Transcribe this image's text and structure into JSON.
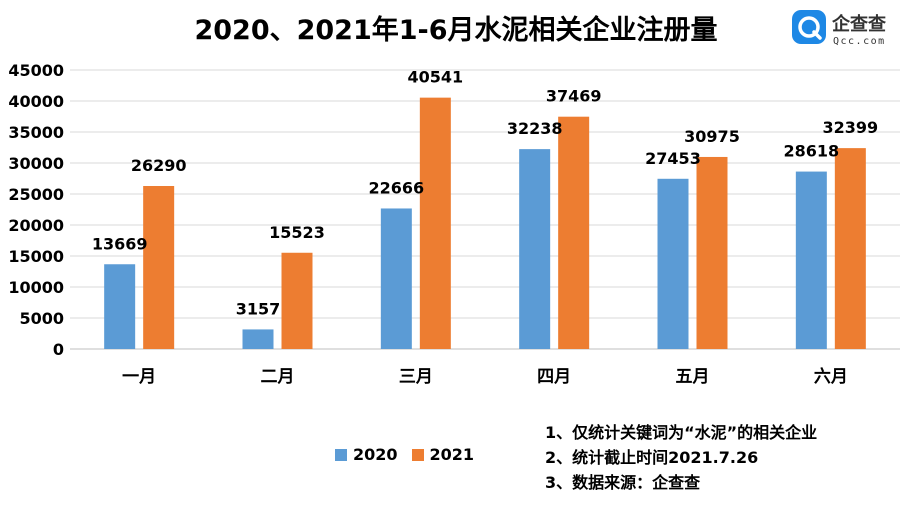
{
  "logo": {
    "mark": "Q",
    "name": "企查查",
    "domain": "Qcc.com",
    "icon": "qcc-logo-icon"
  },
  "notes": [
    "1、仅统计关键词为“水泥”的相关企业",
    "2、统计截止时间2021.7.26",
    "3、数据来源：企查查"
  ],
  "colors": {
    "s2020": "#5b9bd5",
    "s2021": "#ed7d31",
    "grid": "#d9d9d9"
  },
  "chart_data": {
    "type": "bar",
    "title": "2020、2021年1-6月水泥相关企业注册量",
    "xlabel": "",
    "ylabel": "",
    "ylim": [
      0,
      45000
    ],
    "yticks": [
      "0",
      "5000",
      "10000",
      "15000",
      "20000",
      "25000",
      "30000",
      "35000",
      "40000",
      "45000"
    ],
    "grid": true,
    "legend": "bottom",
    "categories": [
      "一月",
      "二月",
      "三月",
      "四月",
      "五月",
      "六月"
    ],
    "series": [
      {
        "name": "2020",
        "values": [
          13669,
          3157,
          22666,
          32238,
          27453,
          28618
        ]
      },
      {
        "name": "2021",
        "values": [
          26290,
          15523,
          40541,
          37469,
          30975,
          32399
        ]
      }
    ]
  }
}
